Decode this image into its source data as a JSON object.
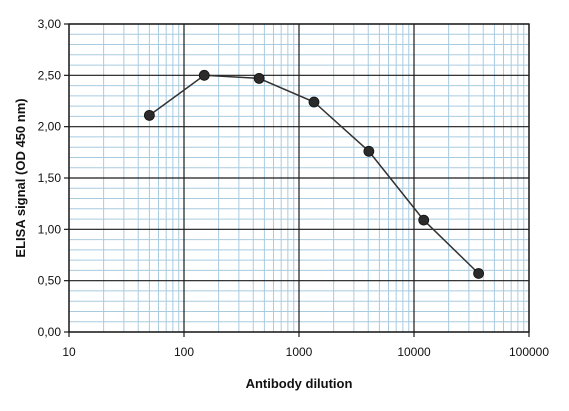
{
  "chart_data": {
    "type": "line",
    "title": "",
    "xlabel": "Antibody dilution",
    "ylabel": "ELISA signal (OD 450 nm)",
    "x_scale": "log",
    "xlim": [
      10,
      100000
    ],
    "ylim": [
      0,
      3.0
    ],
    "grid": true,
    "legend": "none",
    "x_ticks": [
      10,
      100,
      1000,
      10000,
      100000
    ],
    "x_tick_labels": [
      "10",
      "100",
      "1000",
      "10000",
      "100000"
    ],
    "y_ticks": [
      0,
      0.5,
      1.0,
      1.5,
      2.0,
      2.5,
      3.0
    ],
    "y_tick_labels": [
      "0,00",
      "0,50",
      "1,00",
      "1,50",
      "2,00",
      "2,50",
      "3,00"
    ],
    "series": [
      {
        "x": [
          50,
          150,
          450,
          1350,
          4050,
          12150,
          36450
        ],
        "y": [
          2.11,
          2.5,
          2.47,
          2.24,
          1.76,
          1.09,
          0.57
        ]
      }
    ],
    "colors": {
      "minor_grid": "#a9cbe0",
      "major_grid": "#1a1a1a",
      "line": "#333333",
      "marker": "#2b2b2b"
    }
  }
}
